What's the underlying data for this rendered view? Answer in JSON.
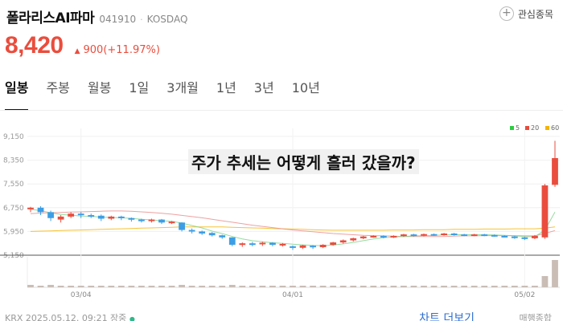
{
  "header": {
    "name": "폴라리스AI파마",
    "code": "041910",
    "separator": "·",
    "market": "KOSDAQ",
    "watch_label": "관심종목"
  },
  "quote": {
    "price": "8,420",
    "change": "900(+11.97%)",
    "color_up": "#ea4d3d"
  },
  "tabs": [
    {
      "label": "일봉",
      "active": true
    },
    {
      "label": "주봉"
    },
    {
      "label": "월봉"
    },
    {
      "label": "1일"
    },
    {
      "label": "3개월"
    },
    {
      "label": "1년"
    },
    {
      "label": "3년"
    },
    {
      "label": "10년"
    }
  ],
  "overlay_title": "주가 추세는 어떻게 흘러 갔을까?",
  "chart_data": {
    "type": "candlestick",
    "y_ticks": [
      "9,150",
      "8,350",
      "7,550",
      "6,750",
      "5,950",
      "5,150"
    ],
    "ylim": [
      5150,
      9150
    ],
    "x_ticks": [
      "03/04",
      "04/01",
      "05/02"
    ],
    "legend": [
      {
        "label": "5",
        "color": "#2ecc40"
      },
      {
        "label": "20",
        "color": "#e74c3c"
      },
      {
        "label": "60",
        "color": "#f5b400"
      }
    ],
    "up_color": "#ea4d3d",
    "down_color": "#3c9ee5",
    "candles": [
      [
        6700,
        6750,
        6650,
        6780,
        6600
      ],
      [
        6750,
        6600,
        6550,
        6800,
        6500
      ],
      [
        6600,
        6400,
        6380,
        6650,
        6300
      ],
      [
        6350,
        6450,
        6300,
        6500,
        6250
      ],
      [
        6450,
        6550,
        6430,
        6600,
        6400
      ],
      [
        6550,
        6500,
        6420,
        6600,
        6400
      ],
      [
        6500,
        6480,
        6420,
        6550,
        6400
      ],
      [
        6480,
        6380,
        6350,
        6520,
        6300
      ],
      [
        6380,
        6450,
        6360,
        6480,
        6330
      ],
      [
        6450,
        6400,
        6360,
        6480,
        6330
      ],
      [
        6400,
        6350,
        6300,
        6420,
        6280
      ],
      [
        6350,
        6300,
        6270,
        6380,
        6250
      ],
      [
        6300,
        6350,
        6280,
        6380,
        6250
      ],
      [
        6350,
        6250,
        6220,
        6370,
        6200
      ],
      [
        6250,
        6280,
        6230,
        6300,
        6200
      ],
      [
        6250,
        6000,
        5980,
        6260,
        5950
      ],
      [
        6000,
        5950,
        5900,
        6050,
        5880
      ],
      [
        5950,
        5880,
        5850,
        5980,
        5830
      ],
      [
        5900,
        5820,
        5800,
        5930,
        5780
      ],
      [
        5820,
        5750,
        5720,
        5840,
        5700
      ],
      [
        5750,
        5500,
        5480,
        5760,
        5450
      ],
      [
        5500,
        5550,
        5470,
        5580,
        5430
      ],
      [
        5550,
        5520,
        5470,
        5600,
        5450
      ],
      [
        5520,
        5570,
        5480,
        5600,
        5460
      ],
      [
        5570,
        5500,
        5470,
        5590,
        5450
      ],
      [
        5500,
        5530,
        5460,
        5560,
        5440
      ],
      [
        5450,
        5400,
        5350,
        5480,
        5330
      ],
      [
        5400,
        5480,
        5380,
        5500,
        5360
      ],
      [
        5470,
        5420,
        5380,
        5490,
        5360
      ],
      [
        5420,
        5500,
        5400,
        5520,
        5390
      ],
      [
        5500,
        5580,
        5480,
        5600,
        5470
      ],
      [
        5580,
        5650,
        5560,
        5680,
        5540
      ],
      [
        5650,
        5720,
        5630,
        5740,
        5610
      ],
      [
        5720,
        5780,
        5700,
        5800,
        5690
      ],
      [
        5780,
        5800,
        5750,
        5820,
        5740
      ],
      [
        5800,
        5770,
        5740,
        5820,
        5720
      ],
      [
        5770,
        5800,
        5750,
        5820,
        5730
      ],
      [
        5800,
        5850,
        5780,
        5870,
        5770
      ],
      [
        5850,
        5820,
        5790,
        5870,
        5780
      ],
      [
        5820,
        5860,
        5800,
        5880,
        5790
      ],
      [
        5860,
        5840,
        5810,
        5880,
        5800
      ],
      [
        5840,
        5880,
        5820,
        5900,
        5810
      ],
      [
        5880,
        5850,
        5820,
        5900,
        5810
      ],
      [
        5850,
        5820,
        5800,
        5870,
        5790
      ],
      [
        5820,
        5850,
        5800,
        5870,
        5790
      ],
      [
        5850,
        5830,
        5800,
        5870,
        5790
      ],
      [
        5830,
        5800,
        5780,
        5850,
        5770
      ],
      [
        5800,
        5780,
        5760,
        5820,
        5750
      ],
      [
        5780,
        5750,
        5720,
        5800,
        5700
      ],
      [
        5750,
        5720,
        5680,
        5770,
        5660
      ],
      [
        5720,
        5800,
        5700,
        5830,
        5690
      ],
      [
        5750,
        7500,
        5720,
        7550,
        5700
      ],
      [
        7520,
        8420,
        7500,
        9000,
        7450
      ]
    ],
    "ma5": [
      6700,
      6650,
      6580,
      6520,
      6500,
      6470,
      6460,
      6430,
      6420,
      6410,
      6390,
      6360,
      6340,
      6310,
      6290,
      6230,
      6150,
      6070,
      5960,
      5880,
      5780,
      5700,
      5640,
      5600,
      5570,
      5550,
      5520,
      5500,
      5480,
      5470,
      5490,
      5530,
      5580,
      5640,
      5700,
      5740,
      5760,
      5780,
      5800,
      5810,
      5820,
      5830,
      5840,
      5840,
      5840,
      5840,
      5830,
      5820,
      5800,
      5780,
      5770,
      6000,
      6600
    ],
    "ma20": [
      6550,
      6570,
      6580,
      6590,
      6600,
      6610,
      6620,
      6630,
      6640,
      6640,
      6630,
      6610,
      6590,
      6560,
      6530,
      6490,
      6450,
      6410,
      6360,
      6310,
      6260,
      6210,
      6160,
      6120,
      6080,
      6040,
      6000,
      5970,
      5940,
      5910,
      5880,
      5860,
      5840,
      5820,
      5810,
      5800,
      5790,
      5780,
      5780,
      5780,
      5780,
      5780,
      5790,
      5800,
      5800,
      5810,
      5810,
      5810,
      5810,
      5800,
      5800,
      5880,
      5980
    ],
    "ma60": [
      5950,
      5960,
      5970,
      5980,
      5990,
      6000,
      6010,
      6020,
      6030,
      6040,
      6050,
      6060,
      6070,
      6080,
      6090,
      6100,
      6100,
      6100,
      6100,
      6100,
      6090,
      6080,
      6070,
      6060,
      6050,
      6040,
      6030,
      6020,
      6010,
      6000,
      5990,
      5990,
      5990,
      5990,
      5990,
      5990,
      6000,
      6000,
      6000,
      6010,
      6010,
      6010,
      6020,
      6020,
      6020,
      6030,
      6030,
      6030,
      6040,
      6040,
      6040,
      6060,
      6100
    ],
    "volume": [
      3,
      2,
      3,
      2,
      2,
      2,
      2,
      2,
      2,
      2,
      2,
      2,
      2,
      2,
      2,
      3,
      2,
      2,
      2,
      2,
      3,
      2,
      2,
      2,
      2,
      2,
      2,
      2,
      2,
      2,
      2,
      2,
      2,
      2,
      2,
      2,
      2,
      2,
      2,
      2,
      2,
      2,
      2,
      2,
      2,
      2,
      2,
      2,
      2,
      2,
      2,
      14,
      34
    ]
  },
  "footer": {
    "source": "KRX  2025.05.12. 09:21 장중",
    "chart_link": "차트 더보기",
    "compare_link": "매행종합"
  }
}
